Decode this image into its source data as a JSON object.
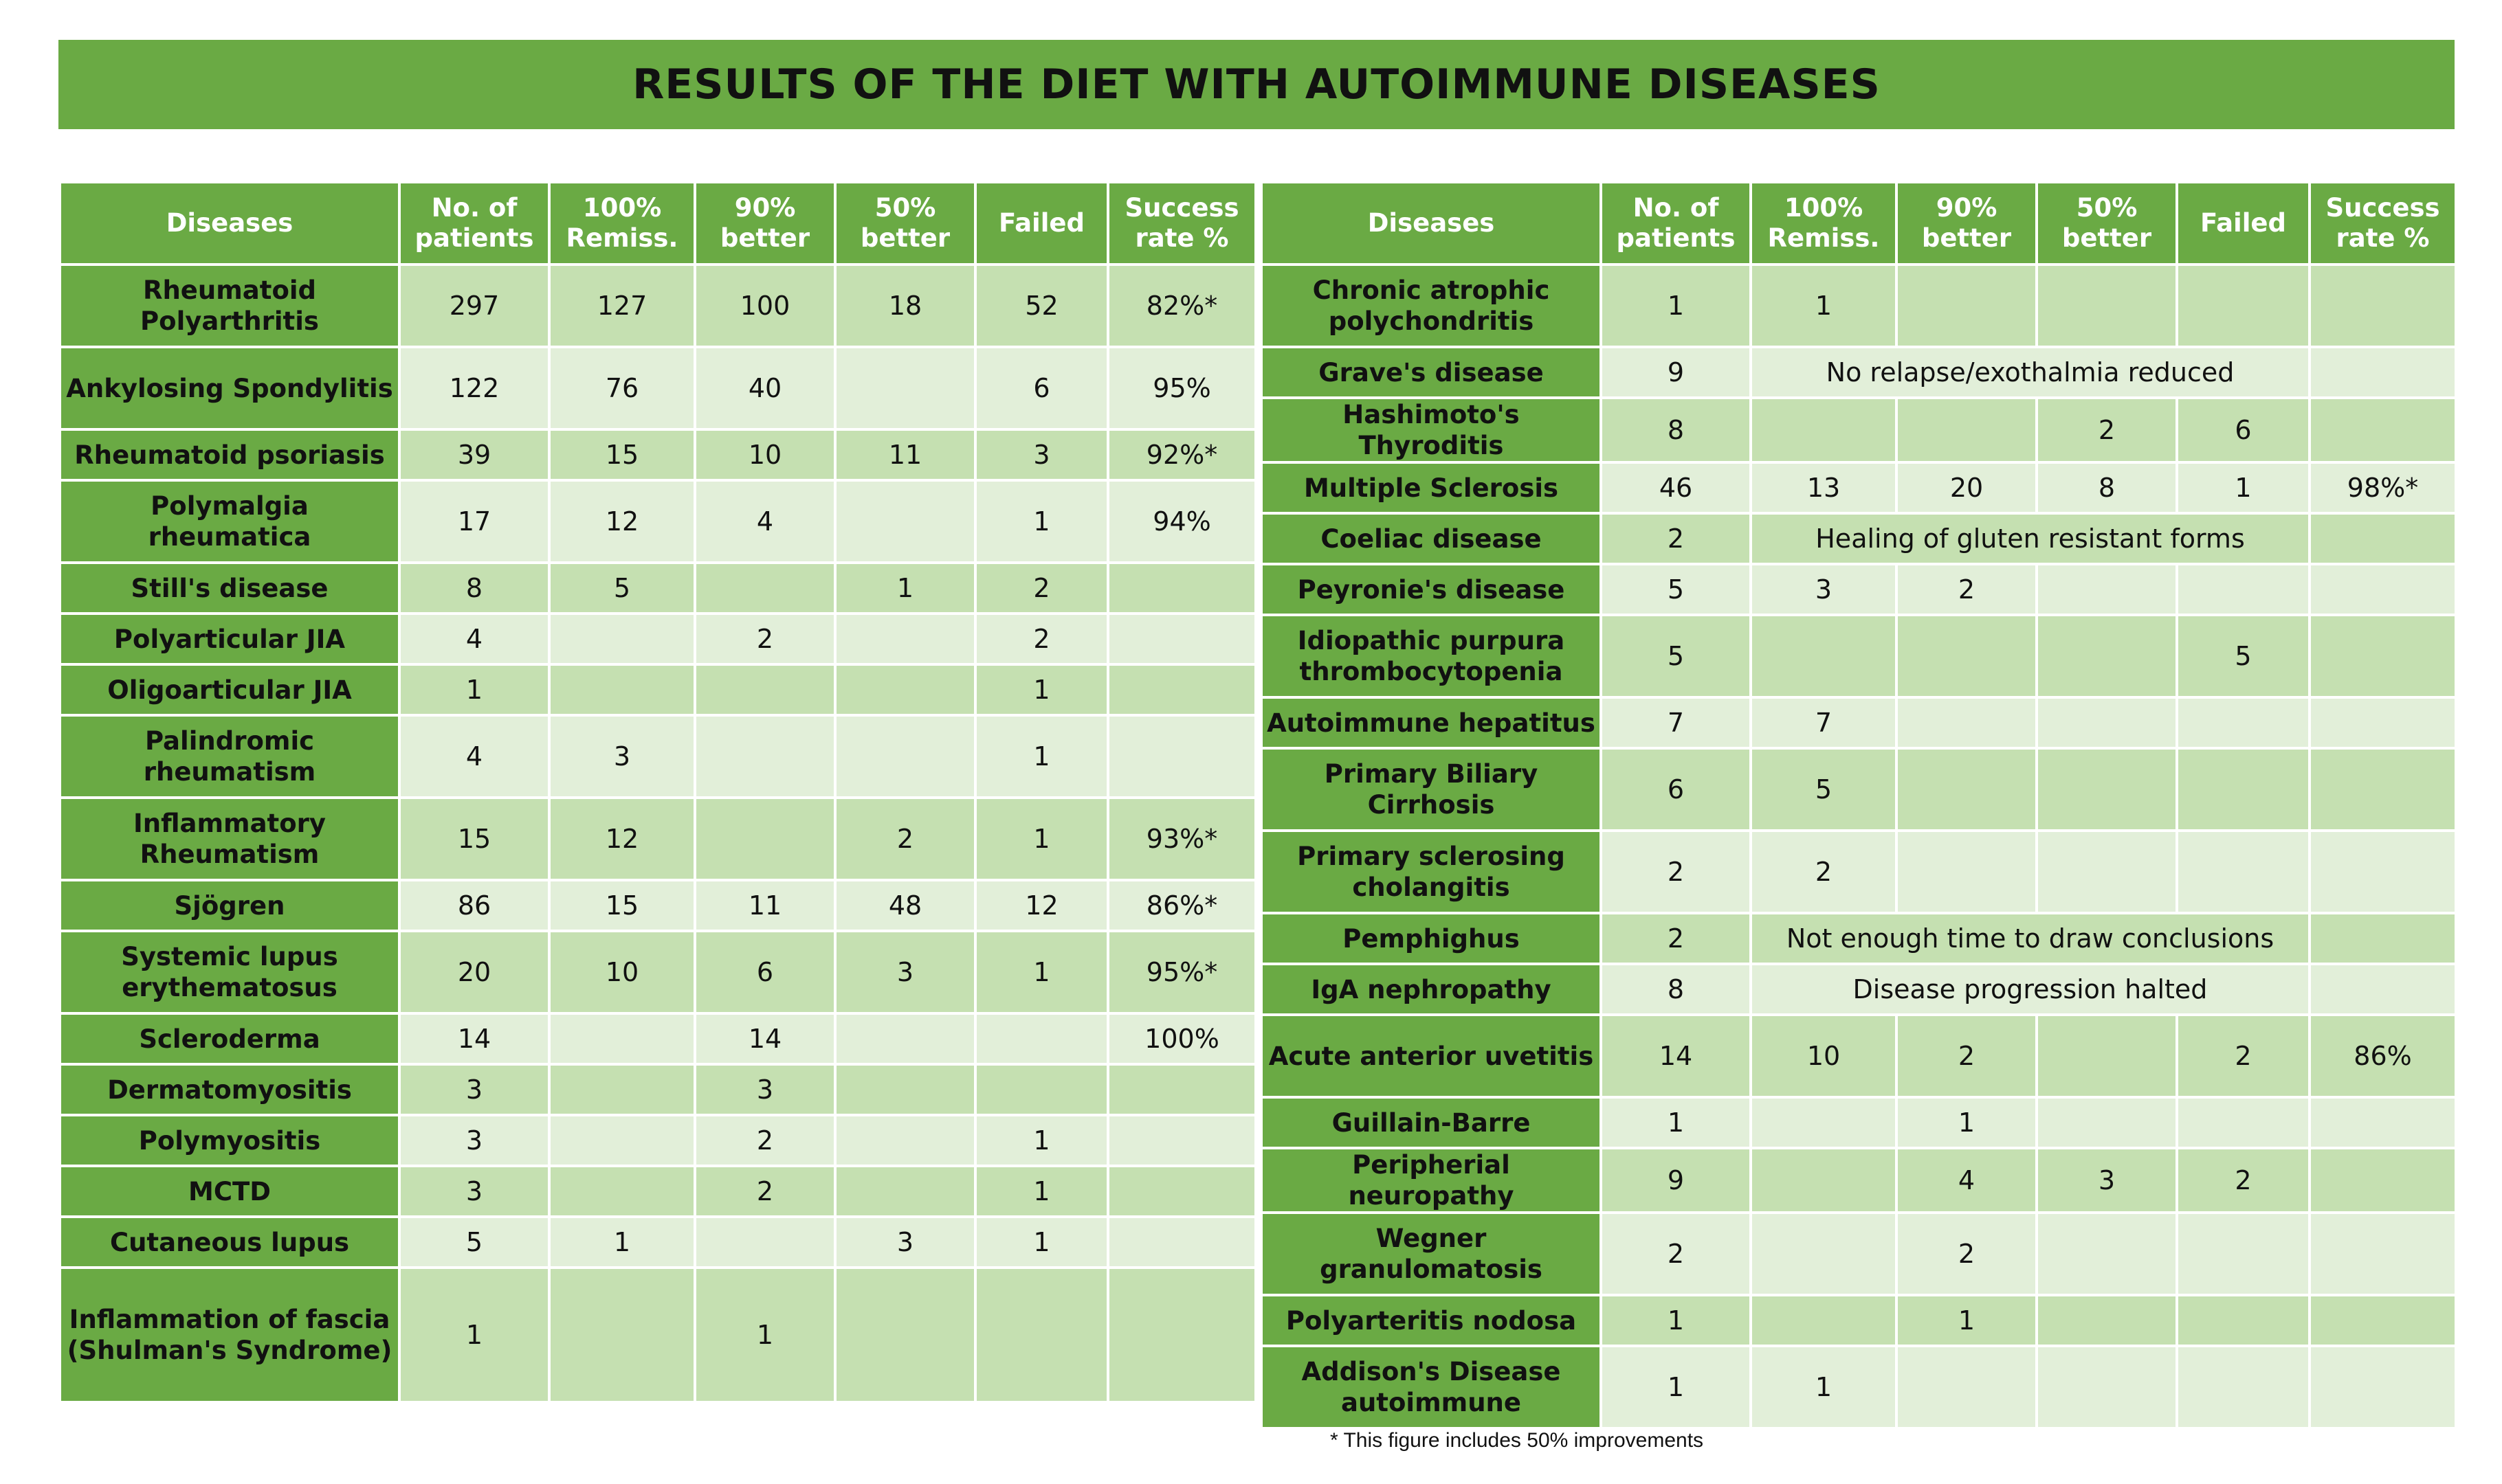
{
  "title": "RESULTS OF THE DIET WITH AUTOIMMUNE DISEASES",
  "headers": [
    "Diseases",
    "No. of patients",
    "100% Remiss.",
    "90% better",
    "50% better",
    "Failed",
    "Success rate %"
  ],
  "left_rows": [
    {
      "name": "Rheumatoid Polyarthritis",
      "cells": [
        "297",
        "127",
        "100",
        "18",
        "52",
        "82%*"
      ]
    },
    {
      "name": "Ankylosing Spondylitis",
      "cells": [
        "122",
        "76",
        "40",
        "",
        "6",
        "95%"
      ]
    },
    {
      "name": "Rheumatoid psoriasis",
      "cells": [
        "39",
        "15",
        "10",
        "11",
        "3",
        "92%*"
      ]
    },
    {
      "name": "Polymalgia rheumatica",
      "cells": [
        "17",
        "12",
        "4",
        "",
        "1",
        "94%"
      ]
    },
    {
      "name": "Still's disease",
      "cells": [
        "8",
        "5",
        "",
        "1",
        "2",
        ""
      ]
    },
    {
      "name": "Polyarticular JIA",
      "cells": [
        "4",
        "",
        "2",
        "",
        "2",
        ""
      ]
    },
    {
      "name": "Oligoarticular JIA",
      "cells": [
        "1",
        "",
        "",
        "",
        "1",
        ""
      ]
    },
    {
      "name": "Palindromic rheumatism",
      "cells": [
        "4",
        "3",
        "",
        "",
        "1",
        ""
      ]
    },
    {
      "name": "Inflammatory Rheumatism",
      "cells": [
        "15",
        "12",
        "",
        "2",
        "1",
        "93%*"
      ]
    },
    {
      "name": "Sjögren",
      "cells": [
        "86",
        "15",
        "11",
        "48",
        "12",
        "86%*"
      ]
    },
    {
      "name": "Systemic lupus erythematosus",
      "cells": [
        "20",
        "10",
        "6",
        "3",
        "1",
        "95%*"
      ]
    },
    {
      "name": "Scleroderma",
      "cells": [
        "14",
        "",
        "14",
        "",
        "",
        "100%"
      ]
    },
    {
      "name": "Dermatomyositis",
      "cells": [
        "3",
        "",
        "3",
        "",
        "",
        ""
      ]
    },
    {
      "name": "Polymyositis",
      "cells": [
        "3",
        "",
        "2",
        "",
        "1",
        ""
      ]
    },
    {
      "name": "MCTD",
      "cells": [
        "3",
        "",
        "2",
        "",
        "1",
        ""
      ]
    },
    {
      "name": "Cutaneous lupus",
      "cells": [
        "5",
        "1",
        "",
        "3",
        "1",
        ""
      ]
    },
    {
      "name": "Inflammation of fascia (Shulman's Syndrome)",
      "cells": [
        "1",
        "",
        "1",
        "",
        "",
        ""
      ]
    }
  ],
  "right_rows": [
    {
      "name": "Chronic atrophic polychondritis",
      "cells": [
        "1",
        "1",
        "",
        "",
        "",
        ""
      ]
    },
    {
      "name": "Grave's disease",
      "cells": [
        "9"
      ],
      "note": "No relapse/exothalmia reduced"
    },
    {
      "name": "Hashimoto's Thyroditis",
      "cells": [
        "8",
        "",
        "",
        "2",
        "6",
        ""
      ]
    },
    {
      "name": "Multiple Sclerosis",
      "cells": [
        "46",
        "13",
        "20",
        "8",
        "1",
        "98%*"
      ]
    },
    {
      "name": "Coeliac disease",
      "cells": [
        "2"
      ],
      "note": "Healing of gluten resistant forms"
    },
    {
      "name": "Peyronie's disease",
      "cells": [
        "5",
        "3",
        "2",
        "",
        "",
        ""
      ]
    },
    {
      "name": "Idiopathic purpura thrombocytopenia",
      "cells": [
        "5",
        "",
        "",
        "",
        "5",
        ""
      ]
    },
    {
      "name": "Autoimmune hepatitus",
      "cells": [
        "7",
        "7",
        "",
        "",
        "",
        ""
      ]
    },
    {
      "name": "Primary Biliary Cirrhosis",
      "cells": [
        "6",
        "5",
        "",
        "",
        "",
        ""
      ]
    },
    {
      "name": "Primary sclerosing cholangitis",
      "cells": [
        "2",
        "2",
        "",
        "",
        "",
        ""
      ]
    },
    {
      "name": "Pemphighus",
      "cells": [
        "2"
      ],
      "note": "Not enough time to draw conclusions"
    },
    {
      "name": "IgA nephropathy",
      "cells": [
        "8"
      ],
      "note": "Disease progression halted"
    },
    {
      "name": "Acute anterior uvetitis",
      "cells": [
        "14",
        "10",
        "2",
        "",
        "2",
        "86%"
      ]
    },
    {
      "name": "Guillain-Barre",
      "cells": [
        "1",
        "",
        "1",
        "",
        "",
        ""
      ]
    },
    {
      "name": "Peripherial neuropathy",
      "cells": [
        "9",
        "",
        "4",
        "3",
        "2",
        ""
      ]
    },
    {
      "name": "Wegner granulomatosis",
      "cells": [
        "2",
        "",
        "2",
        "",
        "",
        ""
      ]
    },
    {
      "name": "Polyarteritis nodosa",
      "cells": [
        "1",
        "",
        "1",
        "",
        "",
        ""
      ]
    },
    {
      "name": "Addison's Disease autoimmune",
      "cells": [
        "1",
        "1",
        "",
        "",
        "",
        ""
      ]
    }
  ],
  "footnote": "* This figure includes 50% improvements",
  "colors": {
    "header_green": "#6aaa44",
    "dark_row": "#c5e0b1",
    "light_row": "#e2efd9"
  }
}
